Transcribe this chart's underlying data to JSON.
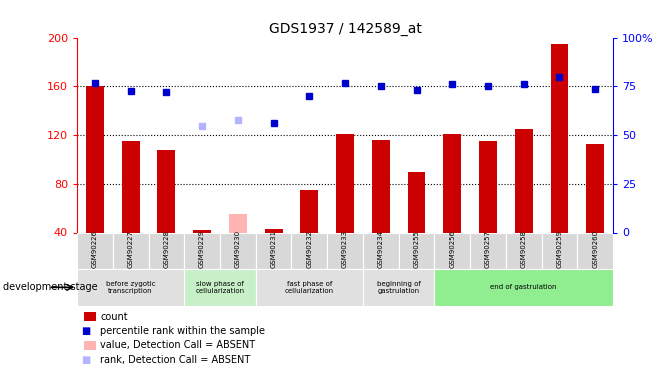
{
  "title": "GDS1937 / 142589_at",
  "samples": [
    "GSM90226",
    "GSM90227",
    "GSM90228",
    "GSM90229",
    "GSM90230",
    "GSM90231",
    "GSM90232",
    "GSM90233",
    "GSM90234",
    "GSM90255",
    "GSM90256",
    "GSM90257",
    "GSM90258",
    "GSM90259",
    "GSM90260"
  ],
  "bar_values": [
    160,
    115,
    108,
    42,
    55,
    43,
    75,
    121,
    116,
    90,
    121,
    115,
    125,
    195,
    113
  ],
  "bar_absent": [
    false,
    false,
    false,
    false,
    true,
    false,
    false,
    false,
    false,
    false,
    false,
    false,
    false,
    false,
    false
  ],
  "rank_values": [
    163,
    156,
    155,
    null,
    132,
    130,
    152,
    163,
    160,
    157,
    162,
    160,
    162,
    168,
    158
  ],
  "rank_absent": [
    false,
    false,
    false,
    false,
    true,
    false,
    false,
    false,
    false,
    false,
    false,
    false,
    false,
    false,
    false
  ],
  "rank_absent_val": 127,
  "ylim_left": [
    40,
    200
  ],
  "ylim_right": [
    0,
    100
  ],
  "left_ticks": [
    40,
    80,
    120,
    160,
    200
  ],
  "right_ticks": [
    0,
    25,
    50,
    75,
    100
  ],
  "right_tick_labels": [
    "0",
    "25",
    "50",
    "75",
    "100%"
  ],
  "bar_color": "#cc0000",
  "bar_absent_color": "#ffb3b3",
  "rank_color": "#0000cc",
  "rank_absent_color": "#b3b3ff",
  "groups": [
    {
      "label": "before zygotic\ntranscription",
      "start": 0,
      "end": 3,
      "color": "#e0e0e0"
    },
    {
      "label": "slow phase of\ncellularization",
      "start": 3,
      "end": 5,
      "color": "#c8f0c8"
    },
    {
      "label": "fast phase of\ncellularization",
      "start": 5,
      "end": 8,
      "color": "#e0e0e0"
    },
    {
      "label": "beginning of\ngastrulation",
      "start": 8,
      "end": 10,
      "color": "#e0e0e0"
    },
    {
      "label": "end of gastrulation",
      "start": 10,
      "end": 15,
      "color": "#90ee90"
    }
  ],
  "dev_stage_label": "development stage",
  "legend_items": [
    {
      "color": "#cc0000",
      "type": "rect",
      "label": "count"
    },
    {
      "color": "#0000cc",
      "type": "square",
      "label": "percentile rank within the sample"
    },
    {
      "color": "#ffb3b3",
      "type": "rect",
      "label": "value, Detection Call = ABSENT"
    },
    {
      "color": "#b3b3ff",
      "type": "square",
      "label": "rank, Detection Call = ABSENT"
    }
  ]
}
